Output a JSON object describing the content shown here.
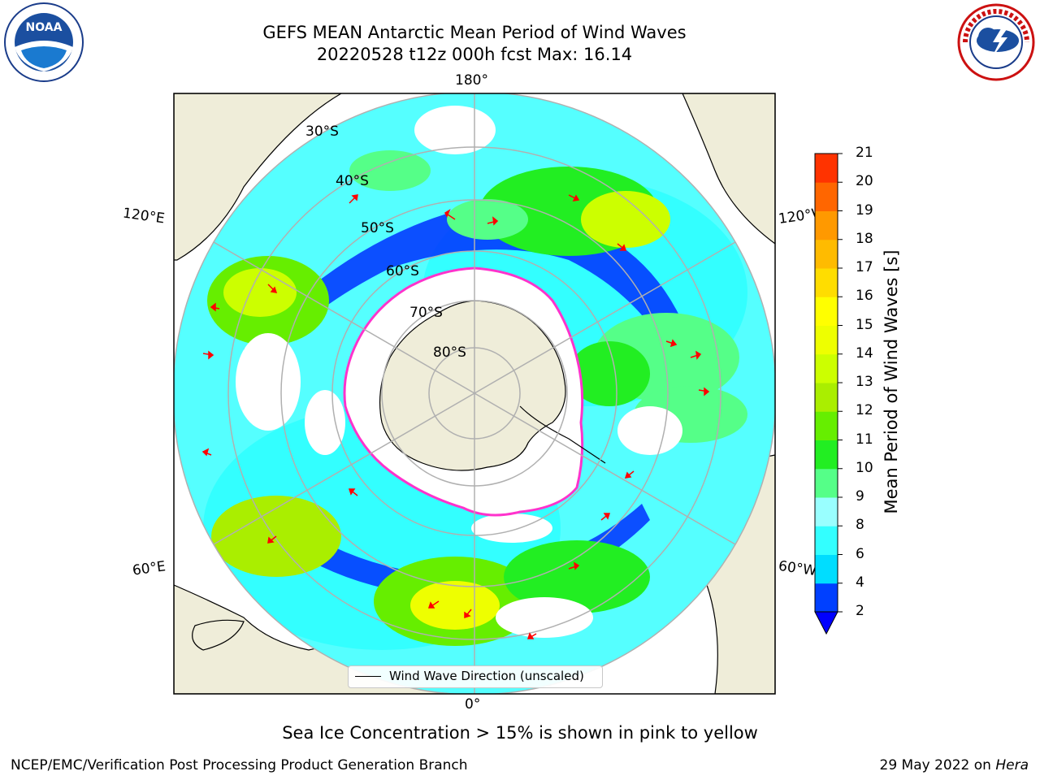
{
  "header": {
    "title_line1": "GEFS MEAN Antarctic Mean Period of Wind Waves",
    "title_line2": "20220528 t12z 000h fcst   Max: 16.14"
  },
  "logos": {
    "left": "noaa-logo",
    "right": "national-weather-service-logo"
  },
  "map": {
    "projection": "south-polar-stereographic",
    "lon_labels": {
      "top": "180°",
      "left_upper": "120°E",
      "right_upper": "120°W",
      "left_lower": "60°E",
      "right_lower": "60°W",
      "bottom": "0°"
    },
    "lat_labels": [
      "30°S",
      "40°S",
      "50°S",
      "60°S",
      "70°S",
      "80°S"
    ],
    "legend_label": "Wind Wave Direction (unscaled)",
    "colors": {
      "land": "#efedd9",
      "ice": "#ffffff",
      "ice_edge": "#ff33cc",
      "arrows": "#ff0000",
      "grid": "#b0b0b0"
    }
  },
  "colorbar": {
    "title": "Mean Period of Wind Waves [s]",
    "ticks": [
      "2",
      "4",
      "6",
      "8",
      "9",
      "10",
      "11",
      "12",
      "13",
      "14",
      "15",
      "16",
      "17",
      "18",
      "19",
      "20",
      "21"
    ],
    "colors": [
      "#0040ff",
      "#00ddff",
      "#33ffff",
      "#99ffff",
      "#55ff88",
      "#22ee22",
      "#66ee00",
      "#aaee00",
      "#ccff00",
      "#eeff00",
      "#ffff00",
      "#ffdd00",
      "#ffbb00",
      "#ff9900",
      "#ff6600",
      "#ff3300"
    ],
    "extend_color": "#0000ff"
  },
  "note": "Sea Ice Concentration > 15% is shown in pink to yellow",
  "footer": {
    "left": "NCEP/EMC/Verification Post Processing Product Generation Branch",
    "date": "29 May 2022 on ",
    "system": "Hera"
  }
}
